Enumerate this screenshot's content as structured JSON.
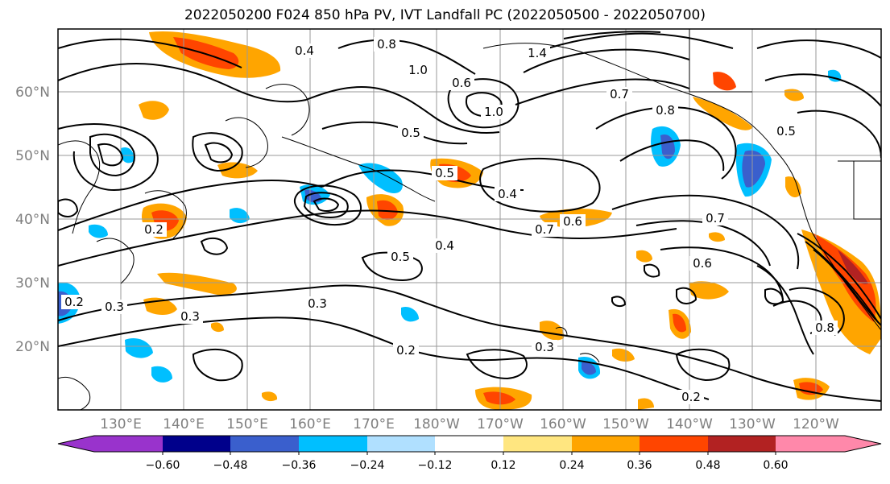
{
  "title": "2022050200 F024 850 hPa PV, IVT Landfall PC (2022050500 - 2022050700)",
  "map": {
    "lat_labels": [
      "60°N",
      "50°N",
      "40°N",
      "30°N",
      "20°N"
    ],
    "lon_labels": [
      "130°E",
      "140°E",
      "150°E",
      "160°E",
      "170°E",
      "180°W",
      "170°W",
      "160°W",
      "150°W",
      "140°W",
      "130°W",
      "120°W"
    ],
    "contour_labels": [
      "0.4",
      "0.5",
      "0.8",
      "1.0",
      "1.4",
      "0.6",
      "1.0",
      "0.7",
      "0.8",
      "0.5",
      "0.4",
      "0.7",
      "0.6",
      "0.2",
      "0.5",
      "0.4",
      "0.3",
      "0.3",
      "0.2",
      "0.3",
      "0.2",
      "0.8",
      "0.7",
      "0.3",
      "0.2",
      "0.5",
      "0.6"
    ]
  },
  "colorbar": {
    "tick_labels": [
      "−0.60",
      "−0.48",
      "−0.36",
      "−0.24",
      "−0.12",
      "0.12",
      "0.24",
      "0.36",
      "0.48",
      "0.60"
    ],
    "colors": [
      "#9933cc",
      "#00008b",
      "#3a5fcd",
      "#00bfff",
      "#b0e0ff",
      "#ffffff",
      "#ffe680",
      "#ffa500",
      "#ff4500",
      "#b22222",
      "#ff88aa"
    ]
  },
  "colors": {
    "grid": "#9a9a9a",
    "contour": "#000000",
    "label": "#7f7f7f"
  }
}
